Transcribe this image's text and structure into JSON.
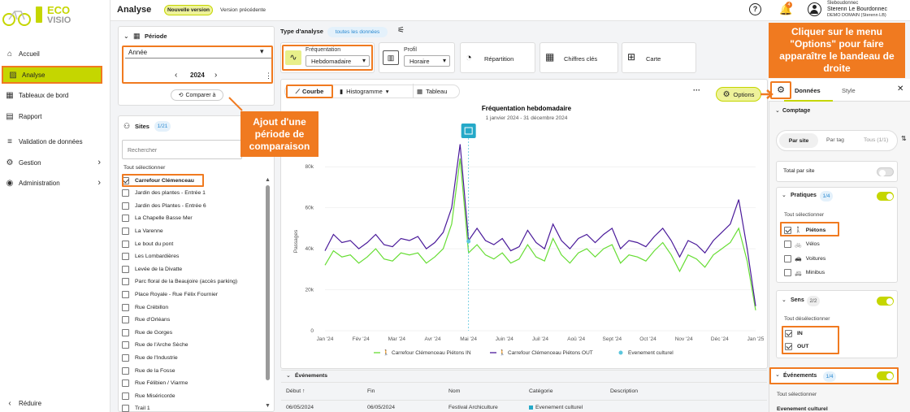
{
  "brand": {
    "line1": "ECO",
    "line2": "VISIO"
  },
  "nav": {
    "accueil": "Accueil",
    "analyse": "Analyse",
    "tableaux": "Tableaux de bord",
    "rapport": "Rapport",
    "validation": "Validation de données",
    "gestion": "Gestion",
    "administration": "Administration",
    "reduire": "Réduire"
  },
  "topbar": {
    "title": "Analyse",
    "new_version": "Nouvelle version",
    "prev_version": "Version précédente",
    "help": "?",
    "notif_count": "4",
    "user_login": "Sleboudonnec",
    "user_name": "Sterenn Le Bourdonnec",
    "user_domain": "DEMO DOMAIN (Sterenn LB)"
  },
  "periode": {
    "label": "Période",
    "select_value": "Année",
    "year": "2024",
    "prev": "‹",
    "next": "›",
    "more": "⋮",
    "compare": "Comparer à"
  },
  "sites": {
    "label": "Sites",
    "count": "1/21",
    "search_placeholder": "Rechercher",
    "select_all": "Tout sélectionner",
    "items": [
      {
        "name": "Carrefour Clémenceau",
        "checked": true
      },
      {
        "name": "Jardin des plantes - Entrée 1",
        "checked": false
      },
      {
        "name": "Jardin des Plantes - Entrée 6",
        "checked": false
      },
      {
        "name": "La Chapelle Basse Mer",
        "checked": false
      },
      {
        "name": "La Varenne",
        "checked": false
      },
      {
        "name": "Le bout du pont",
        "checked": false
      },
      {
        "name": "Les Lombardières",
        "checked": false
      },
      {
        "name": "Levée de la Divatte",
        "checked": false
      },
      {
        "name": "Parc floral de la Beaujoire (accès parking)",
        "checked": false
      },
      {
        "name": "Place Royale - Rue Félix Fournier",
        "checked": false
      },
      {
        "name": "Rue Crébillon",
        "checked": false
      },
      {
        "name": "Rue d'Orléans",
        "checked": false
      },
      {
        "name": "Rue de Gorges",
        "checked": false
      },
      {
        "name": "Rue de l'Arche Sèche",
        "checked": false
      },
      {
        "name": "Rue de l'Industrie",
        "checked": false
      },
      {
        "name": "Rue de la Fosse",
        "checked": false
      },
      {
        "name": "Rue Félibien / Viarme",
        "checked": false
      },
      {
        "name": "Rue Miséricorde",
        "checked": false
      },
      {
        "name": "Trail 1",
        "checked": false
      }
    ]
  },
  "analysis": {
    "type_label": "Type d'analyse",
    "all_data": "toutes les données",
    "frequentation_label": "Fréquentation",
    "frequentation_value": "Hebdomadaire",
    "profil_label": "Profil",
    "profil_value": "Horaire",
    "repartition": "Répartition",
    "chiffres_cles": "Chiffres clés",
    "carte": "Carte"
  },
  "views": {
    "courbe": "Courbe",
    "histogramme": "Histogramme",
    "tableau": "Tableau",
    "more": "···",
    "options": "Options"
  },
  "chart_data": {
    "type": "line",
    "title": "Fréquentation hebdomadaire",
    "subtitle": "1 janvier 2024 - 31 décembre 2024",
    "ylabel": "Passages",
    "ylim": [
      0,
      90000
    ],
    "yticks": [
      "0",
      "20k",
      "40k",
      "60k",
      "80k"
    ],
    "xticks": [
      "Jan '24",
      "Fév '24",
      "Mar '24",
      "Avr '24",
      "Mai '24",
      "Juin '24",
      "Juil '24",
      "Aoû '24",
      "Sept '24",
      "Oct '24",
      "Nov '24",
      "Déc '24",
      "Jan '25"
    ],
    "event_week": 17,
    "series": [
      {
        "name": "Carrefour Clémenceau Piétons IN",
        "color": "#66dd33",
        "values": [
          32000,
          39000,
          36000,
          37000,
          33000,
          36000,
          40000,
          35000,
          34000,
          38000,
          37000,
          38000,
          33000,
          36000,
          40000,
          52000,
          84000,
          38000,
          42000,
          37000,
          35000,
          38000,
          33000,
          35000,
          42000,
          36000,
          34000,
          45000,
          37000,
          33000,
          38000,
          40000,
          36000,
          40000,
          42000,
          33000,
          37000,
          36000,
          34000,
          39000,
          43000,
          37000,
          29000,
          37000,
          35000,
          31000,
          37000,
          40000,
          43000,
          50000,
          34000,
          10000
        ]
      },
      {
        "name": "Carrefour Clémenceau Piétons OUT",
        "color": "#4a1a9a",
        "values": [
          39000,
          47000,
          43000,
          44000,
          40000,
          43000,
          47000,
          42000,
          41000,
          45000,
          44000,
          46000,
          40000,
          43000,
          48000,
          60000,
          91000,
          44000,
          50000,
          44000,
          42000,
          45000,
          39000,
          41000,
          49000,
          43000,
          40000,
          52000,
          44000,
          40000,
          45000,
          47000,
          43000,
          47000,
          50000,
          40000,
          44000,
          43000,
          41000,
          46000,
          50000,
          44000,
          36000,
          44000,
          42000,
          38000,
          44000,
          48000,
          52000,
          64000,
          40000,
          12000
        ]
      }
    ],
    "legend_event": "Evenement culturel",
    "legend_placement": "bottom"
  },
  "events": {
    "label": "Événements",
    "col_debut": "Début",
    "col_fin": "Fin",
    "col_nom": "Nom",
    "col_categorie": "Catégorie",
    "col_description": "Description",
    "row": {
      "debut": "06/05/2024",
      "fin": "06/05/2024",
      "nom": "Festival Archiculture",
      "categorie": "Evenement culturel",
      "description": ""
    }
  },
  "right_panel": {
    "tab_donnees": "Données",
    "tab_style": "Style",
    "close": "✕",
    "comptage": "Comptage",
    "seg_site": "Par site",
    "seg_tag": "Par tag",
    "seg_tous": "Tous (1/1)",
    "total_par_site": "Total par site",
    "pratiques": "Pratiques",
    "pratiques_count": "1/4",
    "tout_selectionner": "Tout sélectionner",
    "pratiques_items": [
      {
        "name": "Piétons",
        "checked": true
      },
      {
        "name": "Vélos",
        "checked": false
      },
      {
        "name": "Voitures",
        "checked": false
      },
      {
        "name": "Minibus",
        "checked": false
      }
    ],
    "sens": "Sens",
    "sens_count": "2/2",
    "tout_deselectionner": "Tout désélectionner",
    "sens_items": [
      {
        "name": "IN",
        "checked": true
      },
      {
        "name": "OUT",
        "checked": true
      }
    ],
    "evenements": "Événements",
    "evenements_count": "1/4",
    "evenements_select": "Tout sélectionner",
    "evenement_culturel": "Evenement culturel"
  },
  "callouts": {
    "options": "Cliquer sur le menu \"Options\" pour faire apparaître le bandeau de droite",
    "comparaison": "Ajout d'une période de comparaison"
  }
}
